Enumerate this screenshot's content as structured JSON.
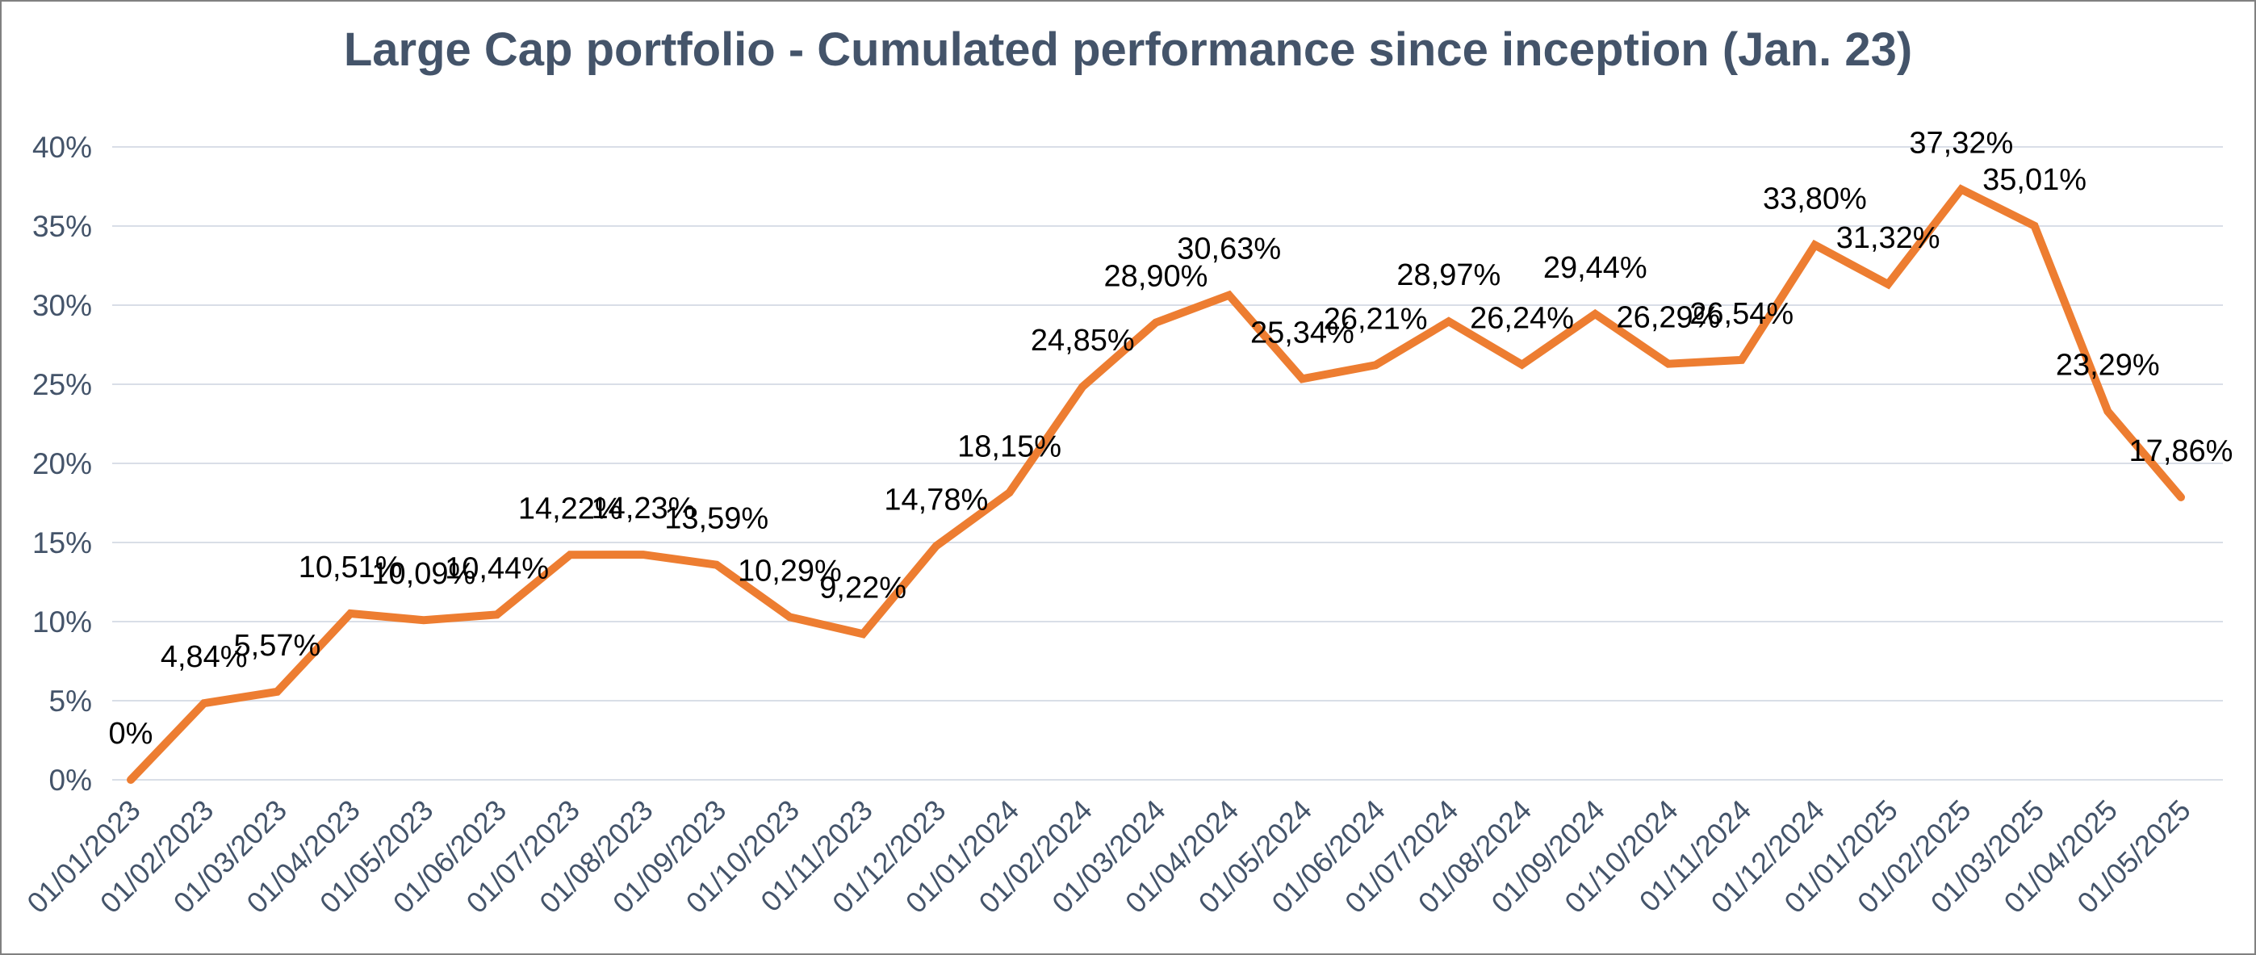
{
  "window": {
    "background": "#FFFFFF",
    "border_color": "#808080"
  },
  "chart_data": {
    "type": "line",
    "title": "Large Cap portfolio - Cumulated performance since inception (Jan. 23)",
    "categories": [
      "01/01/2023",
      "01/02/2023",
      "01/03/2023",
      "01/04/2023",
      "01/05/2023",
      "01/06/2023",
      "01/07/2023",
      "01/08/2023",
      "01/09/2023",
      "01/10/2023",
      "01/11/2023",
      "01/12/2023",
      "01/01/2024",
      "01/02/2024",
      "01/03/2024",
      "01/04/2024",
      "01/05/2024",
      "01/06/2024",
      "01/07/2024",
      "01/08/2024",
      "01/09/2024",
      "01/10/2024",
      "01/11/2024",
      "01/12/2024",
      "01/01/2025",
      "01/02/2025",
      "01/03/2025",
      "01/04/2025",
      "01/05/2025"
    ],
    "values": [
      0,
      4.84,
      5.57,
      10.51,
      10.09,
      10.44,
      14.22,
      14.23,
      13.59,
      10.29,
      9.22,
      14.78,
      18.15,
      24.85,
      28.9,
      30.63,
      25.34,
      26.21,
      28.97,
      26.24,
      29.44,
      26.29,
      26.54,
      33.8,
      31.32,
      37.32,
      35.01,
      23.29,
      17.86
    ],
    "data_labels": [
      "0%",
      "4,84%",
      "5,57%",
      "10,51%",
      "10,09%",
      "10,44%",
      "14,22%",
      "14,23%",
      "13,59%",
      "10,29%",
      "9,22%",
      "14,78%",
      "18,15%",
      "24,85%",
      "28,90%",
      "30,63%",
      "25,34%",
      "26,21%",
      "28,97%",
      "26,24%",
      "29,44%",
      "26,29%",
      "26,54%",
      "33,80%",
      "31,32%",
      "37,32%",
      "35,01%",
      "23,29%",
      "17,86%"
    ],
    "y_ticks": [
      "0%",
      "5%",
      "10%",
      "15%",
      "20%",
      "25%",
      "30%",
      "35%",
      "40%"
    ],
    "y_tick_values": [
      0,
      5,
      10,
      15,
      20,
      25,
      30,
      35,
      40
    ],
    "ylim": [
      0,
      40
    ],
    "xlabel": "",
    "ylabel": "",
    "grid": true,
    "legend": "none",
    "line_color": "#ED7D31",
    "gridline_color": "#D9DEE7",
    "axis_label_color": "#44546A",
    "title_color": "#44546A",
    "data_label_color": "#000000"
  }
}
